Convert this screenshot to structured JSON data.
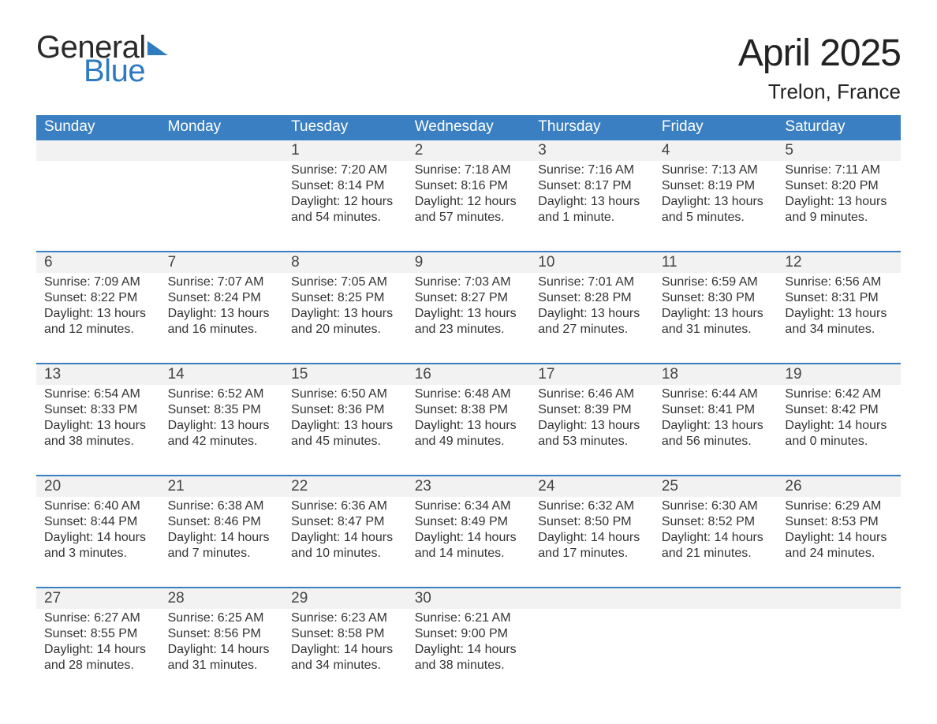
{
  "logo": {
    "line1": "General",
    "line2": "Blue"
  },
  "title": "April 2025",
  "location": "Trelon, France",
  "day_names": [
    "Sunday",
    "Monday",
    "Tuesday",
    "Wednesday",
    "Thursday",
    "Friday",
    "Saturday"
  ],
  "colors": {
    "header_blue": "#3a7fc2",
    "row_bg": "#f2f2f2",
    "text": "#333333",
    "logo_dark": "#2a2a2a",
    "logo_blue": "#2e7bc0",
    "background": "#ffffff"
  },
  "weeks": [
    {
      "days": [
        {
          "num": "",
          "sunrise": "",
          "sunset": "",
          "daylight1": "",
          "daylight2": ""
        },
        {
          "num": "",
          "sunrise": "",
          "sunset": "",
          "daylight1": "",
          "daylight2": ""
        },
        {
          "num": "1",
          "sunrise": "Sunrise: 7:20 AM",
          "sunset": "Sunset: 8:14 PM",
          "daylight1": "Daylight: 12 hours",
          "daylight2": "and 54 minutes."
        },
        {
          "num": "2",
          "sunrise": "Sunrise: 7:18 AM",
          "sunset": "Sunset: 8:16 PM",
          "daylight1": "Daylight: 12 hours",
          "daylight2": "and 57 minutes."
        },
        {
          "num": "3",
          "sunrise": "Sunrise: 7:16 AM",
          "sunset": "Sunset: 8:17 PM",
          "daylight1": "Daylight: 13 hours",
          "daylight2": "and 1 minute."
        },
        {
          "num": "4",
          "sunrise": "Sunrise: 7:13 AM",
          "sunset": "Sunset: 8:19 PM",
          "daylight1": "Daylight: 13 hours",
          "daylight2": "and 5 minutes."
        },
        {
          "num": "5",
          "sunrise": "Sunrise: 7:11 AM",
          "sunset": "Sunset: 8:20 PM",
          "daylight1": "Daylight: 13 hours",
          "daylight2": "and 9 minutes."
        }
      ]
    },
    {
      "days": [
        {
          "num": "6",
          "sunrise": "Sunrise: 7:09 AM",
          "sunset": "Sunset: 8:22 PM",
          "daylight1": "Daylight: 13 hours",
          "daylight2": "and 12 minutes."
        },
        {
          "num": "7",
          "sunrise": "Sunrise: 7:07 AM",
          "sunset": "Sunset: 8:24 PM",
          "daylight1": "Daylight: 13 hours",
          "daylight2": "and 16 minutes."
        },
        {
          "num": "8",
          "sunrise": "Sunrise: 7:05 AM",
          "sunset": "Sunset: 8:25 PM",
          "daylight1": "Daylight: 13 hours",
          "daylight2": "and 20 minutes."
        },
        {
          "num": "9",
          "sunrise": "Sunrise: 7:03 AM",
          "sunset": "Sunset: 8:27 PM",
          "daylight1": "Daylight: 13 hours",
          "daylight2": "and 23 minutes."
        },
        {
          "num": "10",
          "sunrise": "Sunrise: 7:01 AM",
          "sunset": "Sunset: 8:28 PM",
          "daylight1": "Daylight: 13 hours",
          "daylight2": "and 27 minutes."
        },
        {
          "num": "11",
          "sunrise": "Sunrise: 6:59 AM",
          "sunset": "Sunset: 8:30 PM",
          "daylight1": "Daylight: 13 hours",
          "daylight2": "and 31 minutes."
        },
        {
          "num": "12",
          "sunrise": "Sunrise: 6:56 AM",
          "sunset": "Sunset: 8:31 PM",
          "daylight1": "Daylight: 13 hours",
          "daylight2": "and 34 minutes."
        }
      ]
    },
    {
      "days": [
        {
          "num": "13",
          "sunrise": "Sunrise: 6:54 AM",
          "sunset": "Sunset: 8:33 PM",
          "daylight1": "Daylight: 13 hours",
          "daylight2": "and 38 minutes."
        },
        {
          "num": "14",
          "sunrise": "Sunrise: 6:52 AM",
          "sunset": "Sunset: 8:35 PM",
          "daylight1": "Daylight: 13 hours",
          "daylight2": "and 42 minutes."
        },
        {
          "num": "15",
          "sunrise": "Sunrise: 6:50 AM",
          "sunset": "Sunset: 8:36 PM",
          "daylight1": "Daylight: 13 hours",
          "daylight2": "and 45 minutes."
        },
        {
          "num": "16",
          "sunrise": "Sunrise: 6:48 AM",
          "sunset": "Sunset: 8:38 PM",
          "daylight1": "Daylight: 13 hours",
          "daylight2": "and 49 minutes."
        },
        {
          "num": "17",
          "sunrise": "Sunrise: 6:46 AM",
          "sunset": "Sunset: 8:39 PM",
          "daylight1": "Daylight: 13 hours",
          "daylight2": "and 53 minutes."
        },
        {
          "num": "18",
          "sunrise": "Sunrise: 6:44 AM",
          "sunset": "Sunset: 8:41 PM",
          "daylight1": "Daylight: 13 hours",
          "daylight2": "and 56 minutes."
        },
        {
          "num": "19",
          "sunrise": "Sunrise: 6:42 AM",
          "sunset": "Sunset: 8:42 PM",
          "daylight1": "Daylight: 14 hours",
          "daylight2": "and 0 minutes."
        }
      ]
    },
    {
      "days": [
        {
          "num": "20",
          "sunrise": "Sunrise: 6:40 AM",
          "sunset": "Sunset: 8:44 PM",
          "daylight1": "Daylight: 14 hours",
          "daylight2": "and 3 minutes."
        },
        {
          "num": "21",
          "sunrise": "Sunrise: 6:38 AM",
          "sunset": "Sunset: 8:46 PM",
          "daylight1": "Daylight: 14 hours",
          "daylight2": "and 7 minutes."
        },
        {
          "num": "22",
          "sunrise": "Sunrise: 6:36 AM",
          "sunset": "Sunset: 8:47 PM",
          "daylight1": "Daylight: 14 hours",
          "daylight2": "and 10 minutes."
        },
        {
          "num": "23",
          "sunrise": "Sunrise: 6:34 AM",
          "sunset": "Sunset: 8:49 PM",
          "daylight1": "Daylight: 14 hours",
          "daylight2": "and 14 minutes."
        },
        {
          "num": "24",
          "sunrise": "Sunrise: 6:32 AM",
          "sunset": "Sunset: 8:50 PM",
          "daylight1": "Daylight: 14 hours",
          "daylight2": "and 17 minutes."
        },
        {
          "num": "25",
          "sunrise": "Sunrise: 6:30 AM",
          "sunset": "Sunset: 8:52 PM",
          "daylight1": "Daylight: 14 hours",
          "daylight2": "and 21 minutes."
        },
        {
          "num": "26",
          "sunrise": "Sunrise: 6:29 AM",
          "sunset": "Sunset: 8:53 PM",
          "daylight1": "Daylight: 14 hours",
          "daylight2": "and 24 minutes."
        }
      ]
    },
    {
      "days": [
        {
          "num": "27",
          "sunrise": "Sunrise: 6:27 AM",
          "sunset": "Sunset: 8:55 PM",
          "daylight1": "Daylight: 14 hours",
          "daylight2": "and 28 minutes."
        },
        {
          "num": "28",
          "sunrise": "Sunrise: 6:25 AM",
          "sunset": "Sunset: 8:56 PM",
          "daylight1": "Daylight: 14 hours",
          "daylight2": "and 31 minutes."
        },
        {
          "num": "29",
          "sunrise": "Sunrise: 6:23 AM",
          "sunset": "Sunset: 8:58 PM",
          "daylight1": "Daylight: 14 hours",
          "daylight2": "and 34 minutes."
        },
        {
          "num": "30",
          "sunrise": "Sunrise: 6:21 AM",
          "sunset": "Sunset: 9:00 PM",
          "daylight1": "Daylight: 14 hours",
          "daylight2": "and 38 minutes."
        },
        {
          "num": "",
          "sunrise": "",
          "sunset": "",
          "daylight1": "",
          "daylight2": ""
        },
        {
          "num": "",
          "sunrise": "",
          "sunset": "",
          "daylight1": "",
          "daylight2": ""
        },
        {
          "num": "",
          "sunrise": "",
          "sunset": "",
          "daylight1": "",
          "daylight2": ""
        }
      ]
    }
  ]
}
